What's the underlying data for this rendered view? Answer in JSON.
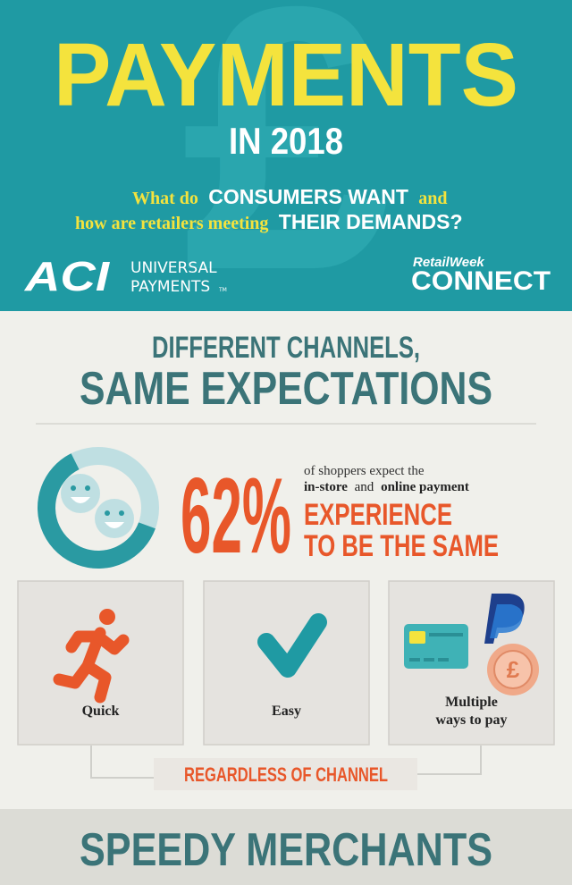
{
  "header": {
    "title": "PAYMENTS",
    "subtitle": "IN 2018",
    "question": [
      [
        "What do",
        "CONSUMERS WANT",
        "and"
      ],
      [
        "how are retailers meeting",
        "THEIR DEMANDS?"
      ]
    ]
  },
  "logos": {
    "aci": "ACI",
    "aci_line_1": "UNIVERSAL",
    "aci_line_2": "PAYMENTS",
    "aci_tm": "TM",
    "retail_week": "RetailWeek",
    "connect": "CONNECT"
  },
  "section": {
    "title_line_1": "DIFFERENT CHANNELS,",
    "title_line_2": "SAME EXPECTATIONS",
    "stat": {
      "value": 62,
      "label": "62%"
    },
    "statement": {
      "line_1": "of shoppers expect the",
      "line_2": [
        "in-store",
        "and",
        "online payment"
      ],
      "line_3": "EXPERIENCE",
      "line_4": "TO BE THE SAME"
    },
    "cards": [
      {
        "lines": [
          "Quick"
        ]
      },
      {
        "lines": [
          "Easy"
        ]
      },
      {
        "lines": [
          "Multiple",
          "ways to pay"
        ]
      }
    ],
    "coin_symbol": "£",
    "channel_note": "REGARDLESS OF CHANNEL"
  },
  "next_section": {
    "title": "SPEEDY MERCHANTS"
  }
}
